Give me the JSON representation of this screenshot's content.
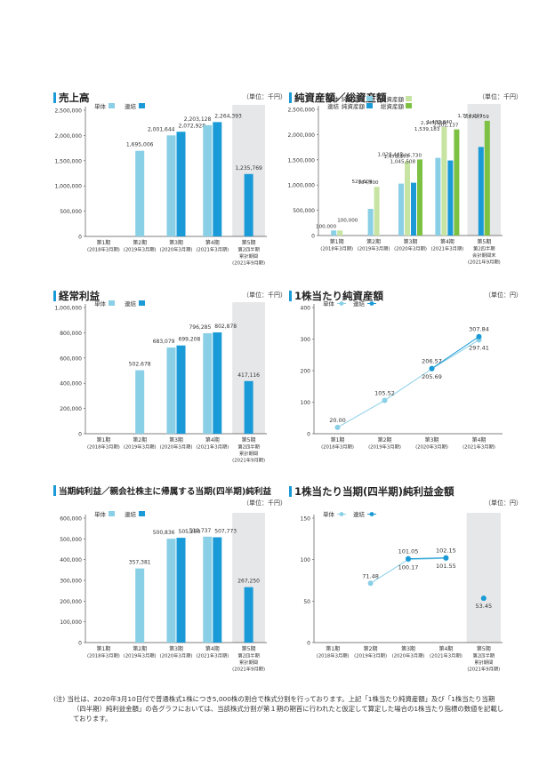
{
  "charts": [
    {
      "id": "sales",
      "title": "売上高",
      "unit": "（単位：千円）",
      "legend": [
        {
          "label": "単体",
          "color": "#89cfe6"
        },
        {
          "label": "連結",
          "color": "#1a9ad6"
        }
      ],
      "chart_data": {
        "type": "bar",
        "title": "売上高",
        "categories": [
          "第1期\n(2018年3月期)",
          "第2期\n(2019年3月期)",
          "第3期\n(2020年3月期)",
          "第4期\n(2021年3月期)",
          "第5期\n第2四半期\n累計期間\n(2021年9月期)"
        ],
        "ylim": [
          0,
          2500000
        ],
        "yticks": [
          "0",
          "500,000",
          "1,000,000",
          "1,500,000",
          "2,000,000",
          "2,500,000"
        ],
        "shaded_last": true,
        "series": [
          {
            "name": "単体",
            "color": "#89cfe6",
            "values": [
              null,
              1695006,
              2001644,
              2203128,
              null
            ],
            "labels": [
              "",
              "1,695,006",
              "2,001,644",
              "2,203,128",
              ""
            ]
          },
          {
            "name": "連結",
            "color": "#1a9ad6",
            "values": [
              null,
              null,
              2072928,
              2264393,
              1235769
            ],
            "labels": [
              "",
              "",
              "2,072,928",
              "2,264,393",
              "1,235,769"
            ]
          }
        ]
      }
    },
    {
      "id": "netassets",
      "title": "純資産額／総資産額",
      "unit": "（単位：千円）",
      "legend": [
        {
          "label": "単体",
          "sub": "純資産額",
          "color": "#89cfe6"
        },
        {
          "label": "",
          "sub": "総資産額",
          "color": "#c7e4a3"
        },
        {
          "label": "連結",
          "sub": "純資産額",
          "color": "#1a9ad6"
        },
        {
          "label": "",
          "sub": "総資産額",
          "color": "#7dc142"
        }
      ],
      "chart_data": {
        "type": "bar",
        "title": "純資産額／総資産額",
        "categories": [
          "第1期\n(2018年3月期)",
          "第2期\n(2019年3月期)",
          "第3期\n(2020年3月期)",
          "第4期\n(2021年3月期)",
          "第5期\n第2四半期\n会計期間末\n(2021年9月期)"
        ],
        "ylim": [
          0,
          2500000
        ],
        "yticks": [
          "0",
          "500,000",
          "1,000,000",
          "1,500,000",
          "2,000,000",
          "2,500,000"
        ],
        "shaded_last": true,
        "series": [
          {
            "name": "単体 純資産額",
            "color": "#89cfe6",
            "values": [
              100000,
              527609,
              1028445,
              1539183,
              null
            ],
            "labels": [
              "100,000",
              "527,609",
              "1,028,445",
              "1,539,183",
              ""
            ]
          },
          {
            "name": "単体 総資産額",
            "color": "#c7e4a3",
            "values": [
              100000,
              964500,
              1476377,
              2147166,
              null
            ],
            "labels": [
              "100,000",
              "964,500",
              "1,476,377",
              "2,147,166",
              ""
            ]
          },
          {
            "name": "連結 純資産額",
            "color": "#1a9ad6",
            "values": [
              null,
              null,
              1045508,
              1487040,
              1754291
            ],
            "labels": [
              "",
              "",
              "1,045,508",
              "1,487,040",
              "1,754,291"
            ]
          },
          {
            "name": "連結 総資産額",
            "color": "#7dc142",
            "values": [
              null,
              null,
              1506730,
              2102137,
              2272759
            ],
            "labels": [
              "",
              "",
              "1,506,730",
              "2,102,137",
              "2,272,759"
            ]
          }
        ]
      }
    },
    {
      "id": "ordinary",
      "title": "経常利益",
      "unit": "（単位：千円）",
      "legend": [
        {
          "label": "単体",
          "color": "#89cfe6"
        },
        {
          "label": "連結",
          "color": "#1a9ad6"
        }
      ],
      "chart_data": {
        "type": "bar",
        "title": "経常利益",
        "categories": [
          "第1期\n(2018年3月期)",
          "第2期\n(2019年3月期)",
          "第3期\n(2020年3月期)",
          "第4期\n(2021年3月期)",
          "第5期\n第2四半期\n累計期間\n(2021年9月期)"
        ],
        "ylim": [
          0,
          1000000
        ],
        "yticks": [
          "0",
          "200,000",
          "400,000",
          "600,000",
          "800,000",
          "1,000,000"
        ],
        "shaded_last": true,
        "series": [
          {
            "name": "単体",
            "color": "#89cfe6",
            "values": [
              null,
              502678,
              683079,
              796285,
              null
            ],
            "labels": [
              "",
              "502,678",
              "683,079",
              "796,285",
              ""
            ]
          },
          {
            "name": "連結",
            "color": "#1a9ad6",
            "values": [
              null,
              null,
              699208,
              802878,
              417116
            ],
            "labels": [
              "",
              "",
              "699,208",
              "802,878",
              "417,116"
            ]
          }
        ]
      }
    },
    {
      "id": "bps",
      "title": "1株当たり純資産額",
      "unit": "（単位：円）",
      "legend": [
        {
          "label": "単体",
          "color": "#89cfe6"
        },
        {
          "label": "連結",
          "color": "#1a9ad6"
        }
      ],
      "chart_data": {
        "type": "line",
        "title": "1株当たり純資産額",
        "categories": [
          "第1期\n(2018年3月期)",
          "第2期\n(2019年3月期)",
          "第3期\n(2020年3月期)",
          "第4期\n(2021年3月期)"
        ],
        "ylim": [
          0,
          400
        ],
        "yticks": [
          "0",
          "100",
          "200",
          "300",
          "400"
        ],
        "shaded_last": false,
        "series": [
          {
            "name": "単体",
            "color": "#89cfe6",
            "values": [
              20.0,
              105.52,
              205.69,
              297.41
            ],
            "labels": [
              "20.00",
              "105.52",
              "205.69",
              "297.41"
            ],
            "label_pos": [
              "above",
              "above",
              "below",
              "below"
            ]
          },
          {
            "name": "連結",
            "color": "#1a9ad6",
            "values": [
              null,
              null,
              206.57,
              307.84
            ],
            "labels": [
              "",
              "",
              "206.57",
              "307.84"
            ],
            "label_pos": [
              "above",
              "above",
              "above",
              "above"
            ]
          }
        ]
      }
    },
    {
      "id": "netincome",
      "title": "当期純利益／親会社株主に帰属する当期(四半期)純利益",
      "unit": "（単位：千円）",
      "small_title": true,
      "legend": [
        {
          "label": "単体",
          "color": "#89cfe6"
        },
        {
          "label": "連結",
          "color": "#1a9ad6"
        }
      ],
      "chart_data": {
        "type": "bar",
        "title": "当期純利益／親会社株主に帰属する当期(四半期)純利益",
        "categories": [
          "第1期\n(2018年3月期)",
          "第2期\n(2019年3月期)",
          "第3期\n(2020年3月期)",
          "第4期\n(2021年3月期)",
          "第5期\n第2四半期\n累計期間\n(2021年9月期)"
        ],
        "ylim": [
          0,
          600000
        ],
        "yticks": [
          "0",
          "100,000",
          "200,000",
          "300,000",
          "400,000",
          "500,000",
          "600,000"
        ],
        "shaded_last": true,
        "series": [
          {
            "name": "単体",
            "color": "#89cfe6",
            "values": [
              null,
              357381,
              500836,
              510737,
              null
            ],
            "labels": [
              "",
              "357,381",
              "500,836",
              "510,737",
              ""
            ]
          },
          {
            "name": "連結",
            "color": "#1a9ad6",
            "values": [
              null,
              null,
              505250,
              507773,
              267250
            ],
            "labels": [
              "",
              "",
              "505,250",
              "507,773",
              "267,250"
            ]
          }
        ]
      }
    },
    {
      "id": "eps",
      "title": "1株当たり当期(四半期)純利益金額",
      "unit": "（単位：円）",
      "legend": [
        {
          "label": "単体",
          "color": "#89cfe6"
        },
        {
          "label": "連結",
          "color": "#1a9ad6"
        }
      ],
      "chart_data": {
        "type": "line",
        "title": "1株当たり当期(四半期)純利益金額",
        "categories": [
          "第1期\n(2018年3月期)",
          "第2期\n(2019年3月期)",
          "第3期\n(2020年3月期)",
          "第4期\n(2021年3月期)",
          "第5期\n第2四半期\n累計期間\n(2021年9月期)"
        ],
        "ylim": [
          0,
          150
        ],
        "yticks": [
          "0",
          "50",
          "100",
          "150"
        ],
        "shaded_last": true,
        "series": [
          {
            "name": "単体",
            "color": "#89cfe6",
            "values": [
              null,
              71.48,
              100.17,
              101.55,
              null
            ],
            "labels": [
              "",
              "71.48",
              "100.17",
              "101.55",
              ""
            ],
            "label_pos": [
              "above",
              "above",
              "below",
              "below",
              "below"
            ]
          },
          {
            "name": "連結",
            "color": "#1a9ad6",
            "values": [
              null,
              null,
              101.05,
              102.15,
              53.45
            ],
            "labels": [
              "",
              "",
              "101.05",
              "102.15",
              "53.45"
            ],
            "label_pos": [
              "above",
              "above",
              "above",
              "above",
              "below"
            ],
            "connect": [
              false,
              false,
              true,
              true,
              false
            ]
          }
        ]
      }
    }
  ],
  "note": {
    "line1": "(注) 当社は、2020年3月10日付で普通株式1株につき5,000株の割合で株式分割を行っております。上記「1株当たり純資産額」及び「1株当たり当期（四半期）純利益金額」の各グラフにおいては、当該株式分割が第１期の期首に行われたと仮定して算定した場合の1株当たり指標の数値を記載しております。"
  }
}
